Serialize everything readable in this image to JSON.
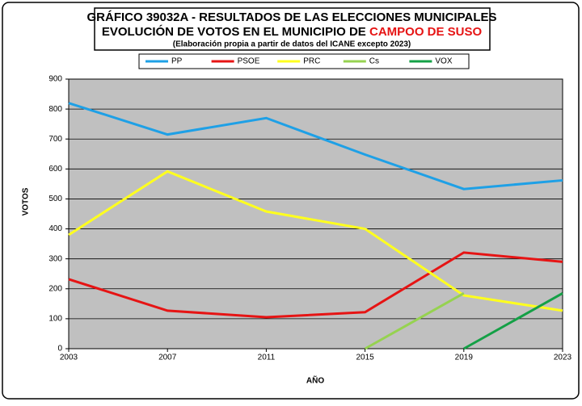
{
  "chart_data": {
    "type": "line",
    "title": "GRÁFICO 39032A - RESULTADOS DE LAS ELECCIONES MUNICIPALES",
    "title_line2": "EVOLUCIÓN DE VOTOS EN EL MUNICIPIO DE",
    "title_highlight": "CAMPOO DE SUSO",
    "subtitle": "(Elaboración propia a partir de datos del ICANE excepto 2023)",
    "y_label": "VOTOS",
    "x_label": "AÑO",
    "categories": [
      "2003",
      "2007",
      "2011",
      "2015",
      "2019",
      "2023"
    ],
    "series": [
      {
        "name": "PP",
        "color": "#1ea0e6",
        "values": [
          820,
          715,
          770,
          648,
          533,
          562
        ]
      },
      {
        "name": "PSOE",
        "color": "#e61414",
        "values": [
          232,
          127,
          105,
          122,
          321,
          290
        ]
      },
      {
        "name": "PRC",
        "color": "#ffff1e",
        "values": [
          380,
          592,
          458,
          400,
          178,
          127
        ]
      },
      {
        "name": "Cs",
        "color": "#96d250",
        "values": [
          null,
          null,
          null,
          0,
          185,
          null
        ]
      },
      {
        "name": "VOX",
        "color": "#14a046",
        "values": [
          null,
          null,
          null,
          null,
          0,
          185
        ]
      }
    ],
    "ylim": [
      0,
      900
    ],
    "yticks": [
      0,
      100,
      200,
      300,
      400,
      500,
      600,
      700,
      800,
      900
    ],
    "grid": true,
    "plot_background": "#c0c0c0",
    "highlight_color": "#e61414"
  }
}
